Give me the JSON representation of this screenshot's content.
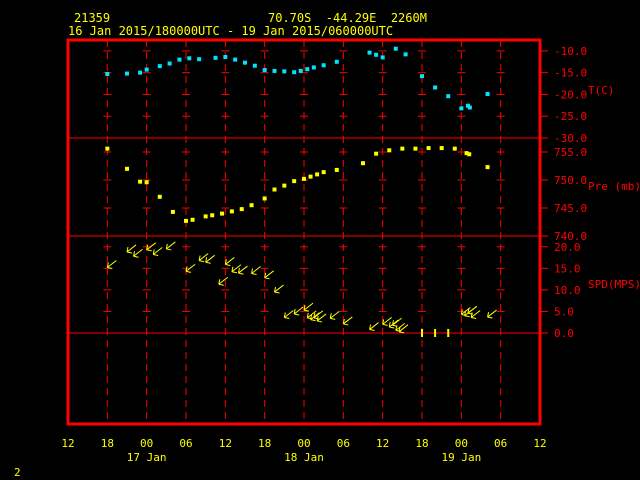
{
  "header": {
    "station_id": "21359",
    "location": "70.70S  -44.29E  2260M",
    "period": "16 Jan 2015/180000UTC - 19 Jan 2015/060000UTC"
  },
  "page_number": "2",
  "colors": {
    "background": "#000000",
    "frame": "#ff0000",
    "grid": "#ff0000",
    "text": "#ffff00",
    "temperature": "#00e5ff",
    "pressure": "#ffff00",
    "wind": "#ffff00"
  },
  "chart_data": {
    "type": "scatter",
    "x_unit": "hours since 12 UTC 16 Jan 2015",
    "x_ticks": [
      0,
      6,
      12,
      18,
      24,
      30,
      36,
      42,
      48,
      54,
      60,
      66,
      72
    ],
    "x_tick_labels": [
      "12",
      "18",
      "00",
      "06",
      "12",
      "18",
      "00",
      "06",
      "12",
      "18",
      "00",
      "06",
      "12"
    ],
    "day_labels": [
      {
        "x": 12,
        "label": "17 Jan"
      },
      {
        "x": 36,
        "label": "18 Jan"
      },
      {
        "x": 60,
        "label": "19 Jan"
      }
    ],
    "xlim": [
      0,
      72
    ],
    "panels": [
      {
        "name": "temperature",
        "axis_label": "T(C)",
        "ylim": [
          -30,
          -7.5
        ],
        "ticks": [
          -10.0,
          -15.0,
          -20.0,
          -25.0,
          -30.0
        ],
        "tick_labels": [
          "-10.0",
          "-15.0",
          "-20.0",
          "-25.0",
          "-30.0"
        ],
        "x": [
          6,
          9,
          11,
          12,
          14,
          15.5,
          17,
          18.5,
          20,
          22.5,
          24,
          25.5,
          27,
          28.5,
          30,
          31.5,
          33,
          34.5,
          35.5,
          36.5,
          37.5,
          39,
          41,
          46,
          47,
          48,
          50,
          51.5,
          54,
          56,
          58,
          60,
          61,
          61.3,
          64
        ],
        "values": [
          -15.3,
          -15.2,
          -15.0,
          -14.3,
          -13.5,
          -12.9,
          -12.0,
          -11.7,
          -11.9,
          -11.6,
          -11.4,
          -12.0,
          -12.7,
          -13.4,
          -14.4,
          -14.6,
          -14.7,
          -14.9,
          -14.6,
          -14.2,
          -13.8,
          -13.3,
          -12.5,
          -10.4,
          -10.9,
          -11.5,
          -9.5,
          -10.8,
          -15.8,
          -18.4,
          -20.4,
          -23.2,
          -22.6,
          -23.0,
          -19.9
        ]
      },
      {
        "name": "pressure",
        "axis_label": "Pre (mb)",
        "ylim": [
          740,
          757.5
        ],
        "ticks": [
          755.0,
          750.0,
          745.0,
          740.0
        ],
        "tick_labels": [
          "755.0",
          "750.0",
          "745.0",
          "740.0"
        ],
        "x": [
          6,
          9,
          11,
          12,
          14,
          16,
          18,
          19,
          21,
          22,
          23.5,
          25,
          26.5,
          28,
          30,
          31.5,
          33,
          34.5,
          36,
          37,
          38,
          39,
          41,
          45,
          47,
          49,
          51,
          53,
          55,
          57,
          59,
          60.8,
          61.2,
          64
        ],
        "values": [
          755.6,
          752.0,
          749.7,
          749.6,
          747.0,
          744.3,
          742.7,
          742.9,
          743.5,
          743.7,
          744.0,
          744.4,
          744.8,
          745.5,
          746.7,
          748.3,
          749.0,
          749.8,
          750.2,
          750.6,
          751.0,
          751.4,
          751.8,
          753.0,
          754.7,
          755.3,
          755.6,
          755.6,
          755.7,
          755.7,
          755.6,
          754.8,
          754.6,
          752.3
        ]
      },
      {
        "name": "wind speed",
        "axis_label": "SPD(MPS)",
        "ylim": [
          0,
          22.5
        ],
        "ticks": [
          20.0,
          15.0,
          10.0,
          5.0,
          0.0
        ],
        "tick_labels": [
          "20.0",
          "15.0",
          "10.0",
          "5.0",
          "0.0"
        ],
        "x": [
          6,
          9,
          10,
          12,
          13,
          15,
          18,
          20,
          21,
          23,
          24,
          25,
          26,
          28,
          30,
          31.5,
          33,
          34.5,
          36,
          36.5,
          37,
          37.5,
          38,
          40,
          42,
          46,
          48,
          49,
          49.5,
          50,
          50.5,
          54,
          56,
          58,
          60,
          60.5,
          61,
          61.5,
          64
        ],
        "values": [
          15.2,
          18.8,
          17.8,
          19.3,
          18.2,
          19.5,
          14.3,
          16.8,
          16.4,
          11.3,
          15.9,
          14.2,
          13.9,
          13.8,
          12.8,
          9.5,
          3.6,
          4.4,
          5.3,
          3.5,
          3.1,
          3.5,
          2.8,
          3.4,
          2.1,
          0.8,
          2.0,
          1.4,
          1.8,
          0.6,
          0.3,
          0,
          0,
          0,
          4.3,
          4.0,
          4.6,
          3.6,
          3.7
        ]
      }
    ]
  }
}
